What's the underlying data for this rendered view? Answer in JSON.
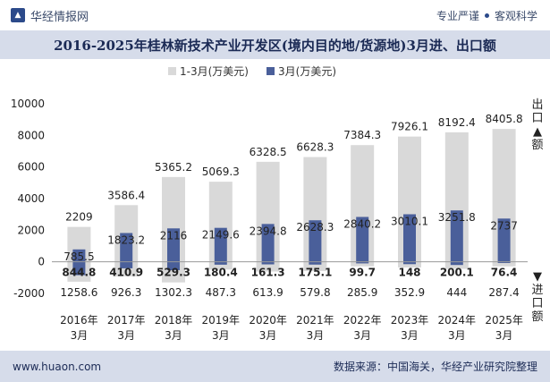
{
  "header": {
    "brand": "华经情报网",
    "tag1": "专业严谨",
    "tag2": "客观科学"
  },
  "title": "2016-2025年桂林新技术产业开发区(境内目的地/货源地)3月进、出口额",
  "footer": {
    "website": "www.huaon.com",
    "source": "数据来源：中国海关，华经产业研究院整理"
  },
  "side_labels": {
    "export": "出口▲额",
    "import": "▼进口额"
  },
  "chart_data": {
    "type": "bar",
    "categories": [
      "2016年3月",
      "2017年3月",
      "2018年3月",
      "2019年3月",
      "2020年3月",
      "2021年3月",
      "2022年3月",
      "2023年3月",
      "2024年3月",
      "2025年3月"
    ],
    "ylim": [
      -2000,
      10000
    ],
    "yticks": [
      -2000,
      0,
      2000,
      4000,
      6000,
      8000,
      10000
    ],
    "legend_position": "top-center",
    "series": [
      {
        "name": "1-3月(万美元)",
        "color": "#d9d9d9",
        "export": [
          2209,
          3586.4,
          5365.2,
          5069.3,
          6328.5,
          6628.3,
          7384.3,
          7926.1,
          8192.4,
          8405.8
        ],
        "import": [
          1258.6,
          926.3,
          1302.3,
          487.3,
          613.9,
          579.8,
          285.9,
          352.9,
          444,
          287.4
        ]
      },
      {
        "name": "3月(万美元)",
        "color": "#4a5f9a",
        "export": [
          785.5,
          1823.2,
          2116,
          2149.6,
          2394.8,
          2628.3,
          2840.2,
          3010.1,
          3251.8,
          2737
        ],
        "import": [
          844.8,
          410.9,
          529.3,
          180.4,
          161.3,
          175.1,
          99.7,
          148,
          200.1,
          76.4
        ]
      }
    ]
  }
}
